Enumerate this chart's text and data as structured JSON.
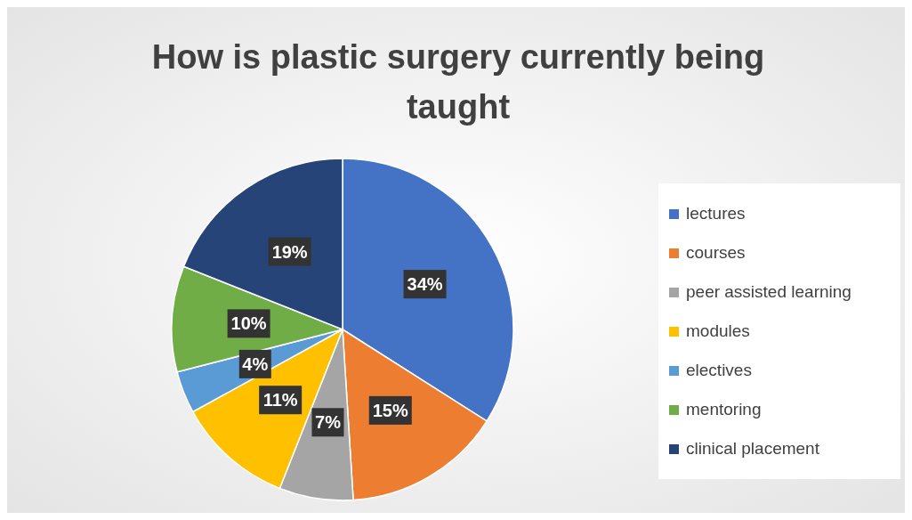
{
  "chart_data": {
    "type": "pie",
    "title": "How is plastic surgery currently being taught",
    "categories": [
      "lectures",
      "courses",
      "peer assisted learning",
      "modules",
      "electives",
      "mentoring",
      "clinical placement"
    ],
    "values": [
      34,
      15,
      7,
      11,
      4,
      10,
      19
    ],
    "value_labels": [
      "34%",
      "15%",
      "7%",
      "11%",
      "4%",
      "10%",
      "19%"
    ],
    "colors": [
      "#4472c4",
      "#ed7d31",
      "#a5a5a5",
      "#ffc000",
      "#5b9bd5",
      "#70ad47",
      "#264478"
    ],
    "legend": "right"
  }
}
